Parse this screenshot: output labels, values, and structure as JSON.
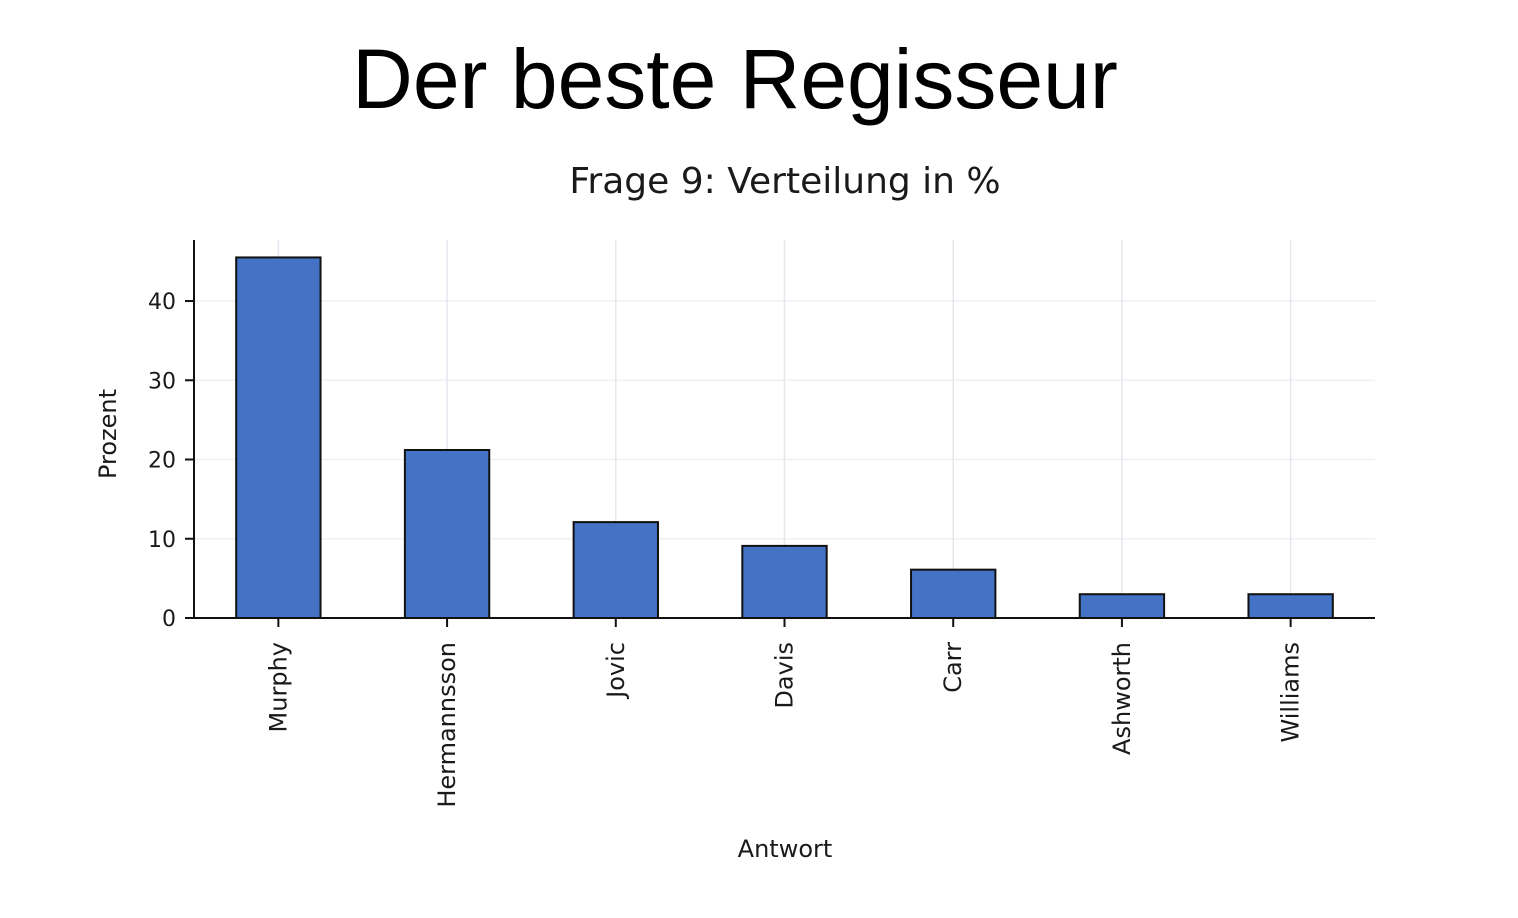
{
  "slide": {
    "title": "Der beste Regisseur"
  },
  "chart_data": {
    "type": "bar",
    "title": "Frage 9: Verteilung in %",
    "xlabel": "Antwort",
    "ylabel": "Prozent",
    "categories": [
      "Murphy",
      "Hermannsson",
      "Jovic",
      "Davis",
      "Carr",
      "Ashworth",
      "Williams"
    ],
    "values": [
      45.5,
      21.2,
      12.1,
      9.1,
      6.1,
      3.0,
      3.0
    ],
    "ylim": [
      0,
      47.7
    ],
    "yticks": [
      0,
      10,
      20,
      30,
      40
    ],
    "grid": true,
    "bar_color": "#4472c4",
    "bar_edge_color": "#111111"
  }
}
